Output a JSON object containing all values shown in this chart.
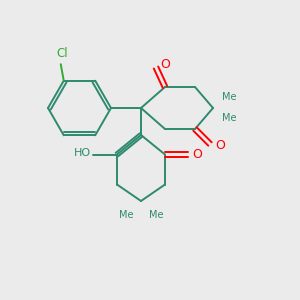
{
  "background_color": "#ebebeb",
  "bond_color": "#2d8a6e",
  "oxygen_color": "#ff0000",
  "chlorine_color": "#33aa33",
  "bond_width": 1.4,
  "figsize": [
    3.0,
    3.0
  ],
  "dpi": 100,
  "xlim": [
    0,
    10
  ],
  "ylim": [
    0,
    10
  ]
}
